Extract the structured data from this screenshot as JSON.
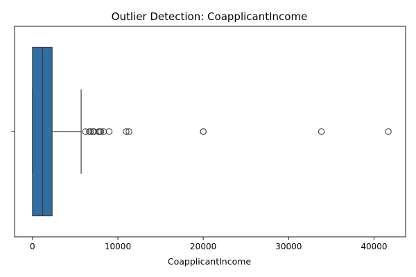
{
  "chart_data": {
    "type": "boxplot",
    "title": "Outlier Detection: CoapplicantIncome",
    "xlabel": "CoapplicantIncome",
    "ylabel": "",
    "orientation": "horizontal",
    "xlim": [
      -2100,
      43700
    ],
    "x_ticks": [
      0,
      10000,
      20000,
      30000,
      40000
    ],
    "x_tick_labels": [
      "0",
      "10000",
      "20000",
      "30000",
      "40000"
    ],
    "y_ticks": [
      ""
    ],
    "box": {
      "whisker_low": 0,
      "q1": 0,
      "median": 1190,
      "q3": 2300,
      "whisker_high": 5700,
      "fill_color": "#2f6fa6",
      "line_color": "#3f3f3f"
    },
    "outliers": [
      6200,
      6660,
      6820,
      7080,
      7210,
      7750,
      7870,
      8000,
      8330,
      8980,
      10970,
      11300,
      20000,
      20000,
      33840,
      41670
    ],
    "grid": false
  }
}
